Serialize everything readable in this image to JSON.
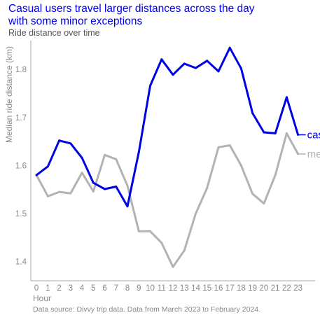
{
  "chart_data": {
    "type": "line",
    "title_line1": "Casual users travel larger distances across the day",
    "title_line2": "with some minor exceptions",
    "subtitle": "Ride distance over time",
    "xlabel": "Hour",
    "ylabel": "Median ride distance (km)",
    "caption": "Data source: Divvy trip data. Data from March 2023 to February 2024.",
    "x": [
      0,
      1,
      2,
      3,
      4,
      5,
      6,
      7,
      8,
      9,
      10,
      11,
      12,
      13,
      14,
      15,
      16,
      17,
      18,
      19,
      20,
      21,
      22,
      23
    ],
    "x_tick_labels": [
      "0",
      "1",
      "2",
      "3",
      "4",
      "5",
      "6",
      "7",
      "8",
      "9",
      "10",
      "11",
      "12",
      "13",
      "14",
      "15",
      "16",
      "17",
      "18",
      "19",
      "20",
      "21",
      "22",
      "23"
    ],
    "y_ticks": [
      1.4,
      1.5,
      1.6,
      1.7,
      1.8
    ],
    "y_tick_labels": [
      "1.4",
      "1.5",
      "1.6",
      "1.7",
      "1.8"
    ],
    "ylim": [
      1.36,
      1.86
    ],
    "xlim": [
      -0.5,
      24.5
    ],
    "grid": false,
    "series": [
      {
        "name": "casual",
        "color": "#0000e6",
        "values": [
          1.58,
          1.598,
          1.652,
          1.646,
          1.616,
          1.564,
          1.551,
          1.556,
          1.515,
          1.628,
          1.766,
          1.821,
          1.789,
          1.812,
          1.803,
          1.818,
          1.796,
          1.845,
          1.802,
          1.709,
          1.669,
          1.667,
          1.742,
          1.664
        ]
      },
      {
        "name": "member",
        "color": "#b3b3b3",
        "values": [
          1.58,
          1.536,
          1.545,
          1.542,
          1.585,
          1.546,
          1.622,
          1.613,
          1.558,
          1.463,
          1.463,
          1.439,
          1.389,
          1.423,
          1.5,
          1.553,
          1.638,
          1.642,
          1.6,
          1.541,
          1.521,
          1.58,
          1.667,
          1.624
        ]
      }
    ]
  }
}
